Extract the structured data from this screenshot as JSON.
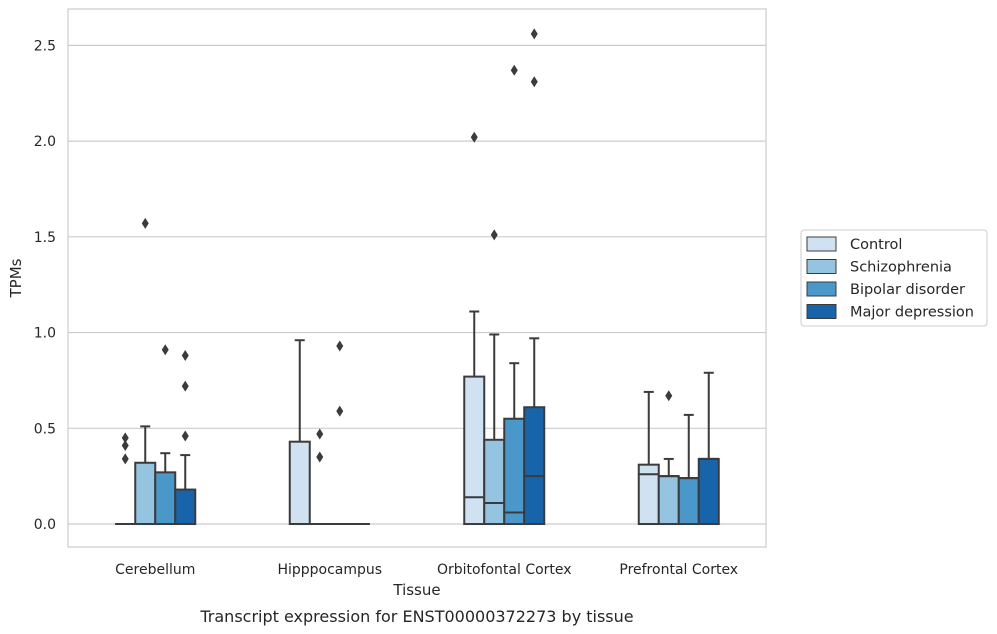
{
  "chart_data": {
    "type": "box",
    "title": "",
    "caption": "Transcript expression for ENST00000372273 by tissue",
    "xlabel": "Tissue",
    "ylabel": "TPMs",
    "ylim": [
      -0.12,
      2.69
    ],
    "yticks": [
      0.0,
      0.5,
      1.0,
      1.5,
      2.0,
      2.5
    ],
    "ytick_labels": [
      "0.0",
      "0.5",
      "1.0",
      "1.5",
      "2.0",
      "2.5"
    ],
    "grid": "horizontal",
    "legend_placement": "right",
    "categories": [
      "Cerebellum",
      "Hipppocampus",
      "Orbitofontal Cortex",
      "Prefrontal Cortex"
    ],
    "series": [
      {
        "name": "Control",
        "color": "#d0e1f2",
        "boxes": [
          {
            "q1": 0,
            "median": 0,
            "q3": 0,
            "whisker_low": 0,
            "whisker_high": 0,
            "fliers": [
              0.45,
              0.41,
              0.34
            ]
          },
          {
            "q1": 0,
            "median": 0,
            "q3": 0.43,
            "whisker_low": 0,
            "whisker_high": 0.96,
            "fliers": []
          },
          {
            "q1": 0,
            "median": 0.14,
            "q3": 0.77,
            "whisker_low": 0,
            "whisker_high": 1.11,
            "fliers": [
              2.02
            ]
          },
          {
            "q1": 0,
            "median": 0.26,
            "q3": 0.31,
            "whisker_low": 0,
            "whisker_high": 0.69,
            "fliers": []
          }
        ]
      },
      {
        "name": "Schizophrenia",
        "color": "#94c4df",
        "boxes": [
          {
            "q1": 0,
            "median": 0,
            "q3": 0.32,
            "whisker_low": 0,
            "whisker_high": 0.51,
            "fliers": [
              1.57
            ]
          },
          {
            "q1": 0,
            "median": 0,
            "q3": 0,
            "whisker_low": 0,
            "whisker_high": 0,
            "fliers": [
              0.47,
              0.35
            ]
          },
          {
            "q1": 0,
            "median": 0.11,
            "q3": 0.44,
            "whisker_low": 0,
            "whisker_high": 0.99,
            "fliers": [
              1.51
            ]
          },
          {
            "q1": 0,
            "median": 0.25,
            "q3": 0.25,
            "whisker_low": 0,
            "whisker_high": 0.34,
            "fliers": [
              0.67
            ]
          }
        ]
      },
      {
        "name": "Bipolar disorder",
        "color": "#4a98c9",
        "boxes": [
          {
            "q1": 0,
            "median": 0,
            "q3": 0.27,
            "whisker_low": 0,
            "whisker_high": 0.37,
            "fliers": [
              0.91
            ]
          },
          {
            "q1": 0,
            "median": 0,
            "q3": 0,
            "whisker_low": 0,
            "whisker_high": 0,
            "fliers": [
              0.93,
              0.59
            ]
          },
          {
            "q1": 0,
            "median": 0.06,
            "q3": 0.55,
            "whisker_low": 0,
            "whisker_high": 0.84,
            "fliers": [
              2.37
            ]
          },
          {
            "q1": 0,
            "median": 0.24,
            "q3": 0.24,
            "whisker_low": 0,
            "whisker_high": 0.57,
            "fliers": []
          }
        ]
      },
      {
        "name": "Major depression",
        "color": "#1764ab",
        "boxes": [
          {
            "q1": 0,
            "median": 0,
            "q3": 0.18,
            "whisker_low": 0,
            "whisker_high": 0.36,
            "fliers": [
              0.88,
              0.72,
              0.46
            ]
          },
          {
            "q1": 0,
            "median": 0,
            "q3": 0,
            "whisker_low": 0,
            "whisker_high": 0,
            "fliers": []
          },
          {
            "q1": 0,
            "median": 0.25,
            "q3": 0.61,
            "whisker_low": 0,
            "whisker_high": 0.97,
            "fliers": [
              2.56,
              2.31
            ]
          },
          {
            "q1": 0,
            "median": 0.34,
            "q3": 0.34,
            "whisker_low": 0,
            "whisker_high": 0.79,
            "fliers": []
          }
        ]
      }
    ]
  }
}
